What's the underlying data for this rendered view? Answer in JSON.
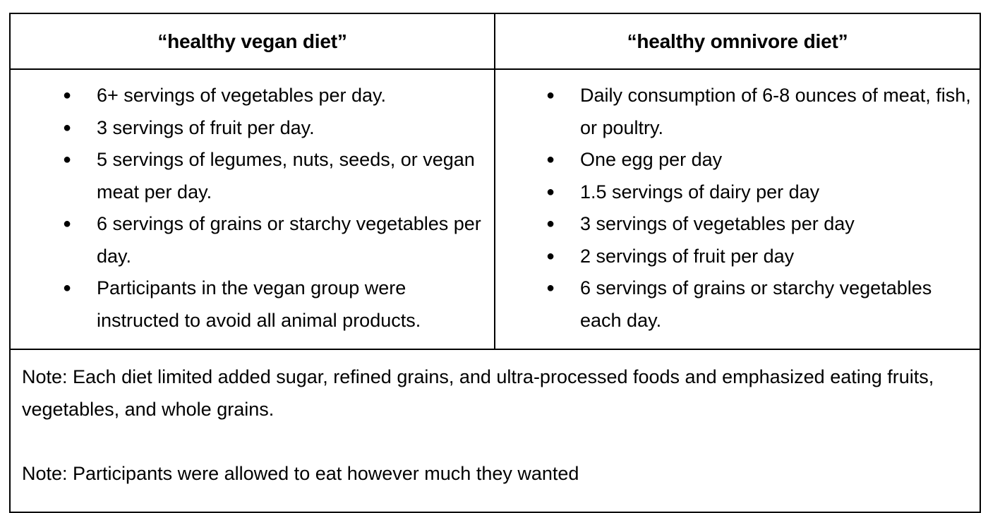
{
  "table": {
    "headers": {
      "vegan": "“healthy vegan diet”",
      "omnivore": "“healthy omnivore diet”"
    },
    "vegan_items": [
      "6+ servings of vegetables per day.",
      "3 servings of fruit per day.",
      "5 servings of legumes, nuts, seeds, or vegan meat per day.",
      "6 servings of grains or starchy vegetables per day.",
      "Participants in the vegan group were instructed to avoid all animal products."
    ],
    "omnivore_items": [
      "Daily consumption of 6-8 ounces of meat, fish, or poultry.",
      "One egg per day",
      "1.5 servings of dairy per day",
      "3 servings of vegetables per day",
      "2 servings of fruit per day",
      "6 servings of grains or starchy vegetables each day."
    ],
    "bullet_glyph": "●",
    "notes": [
      "Note: Each diet limited added sugar, refined grains, and ultra-processed foods and emphasized eating fruits, vegetables, and whole grains.",
      "Note: Participants were allowed to eat however much they wanted"
    ]
  }
}
